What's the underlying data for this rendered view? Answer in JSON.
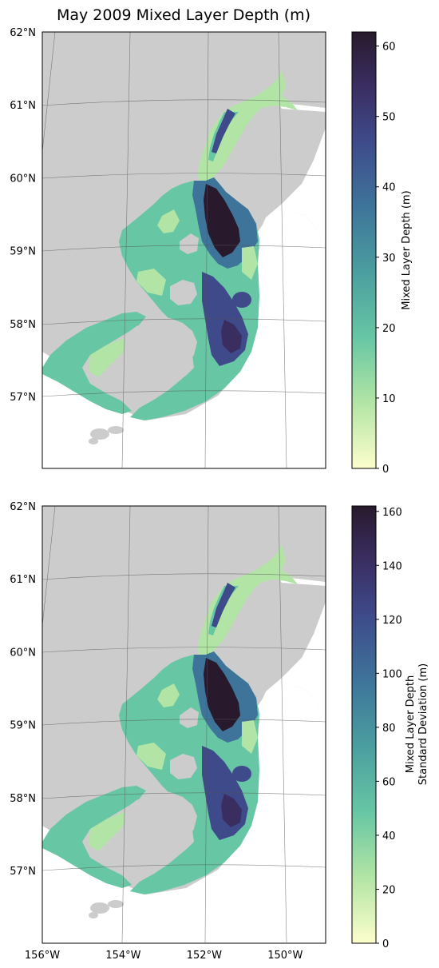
{
  "figure_title": "May 2009 Mixed Layer Depth (m)",
  "chart_data": [
    {
      "type": "heatmap",
      "title": "May 2009 Mixed Layer Depth (m)",
      "lat_ticks": [
        "62°N",
        "61°N",
        "60°N",
        "59°N",
        "58°N",
        "57°N"
      ],
      "lon_ticks": [],
      "colorbar": {
        "label": "Mixed Layer Depth (m)",
        "range": [
          0,
          62
        ],
        "ticks": [
          0,
          10,
          20,
          30,
          40,
          50,
          60
        ],
        "tick_labels": [
          "0",
          "10",
          "20",
          "30",
          "40",
          "50",
          "60"
        ]
      },
      "colormap": "deep (yellow to dark purple)",
      "land_color": "#cccccc",
      "gridlines": true
    },
    {
      "type": "heatmap",
      "title": "",
      "lat_ticks": [
        "62°N",
        "61°N",
        "60°N",
        "59°N",
        "58°N",
        "57°N"
      ],
      "lon_ticks": [
        "156°W",
        "154°W",
        "152°W",
        "150°W"
      ],
      "colorbar": {
        "label_line1": "Mixed Layer Depth",
        "label_line2": "Standard Deviation (m)",
        "range": [
          0,
          162
        ],
        "ticks": [
          0,
          20,
          40,
          60,
          80,
          100,
          120,
          140,
          160
        ],
        "tick_labels": [
          "0",
          "20",
          "40",
          "60",
          "80",
          "100",
          "120",
          "140",
          "160"
        ]
      },
      "colormap": "deep (yellow to dark purple)",
      "land_color": "#cccccc",
      "gridlines": true
    }
  ],
  "colors": {
    "land": "#cccccc",
    "ocean_missing": "#ffffff",
    "grid": "#555555",
    "cmap": [
      "#fdfecc",
      "#b2e5a5",
      "#67c6a4",
      "#4b9e9f",
      "#3e749a",
      "#3e4a8a",
      "#3a2d60",
      "#281a2c"
    ]
  }
}
